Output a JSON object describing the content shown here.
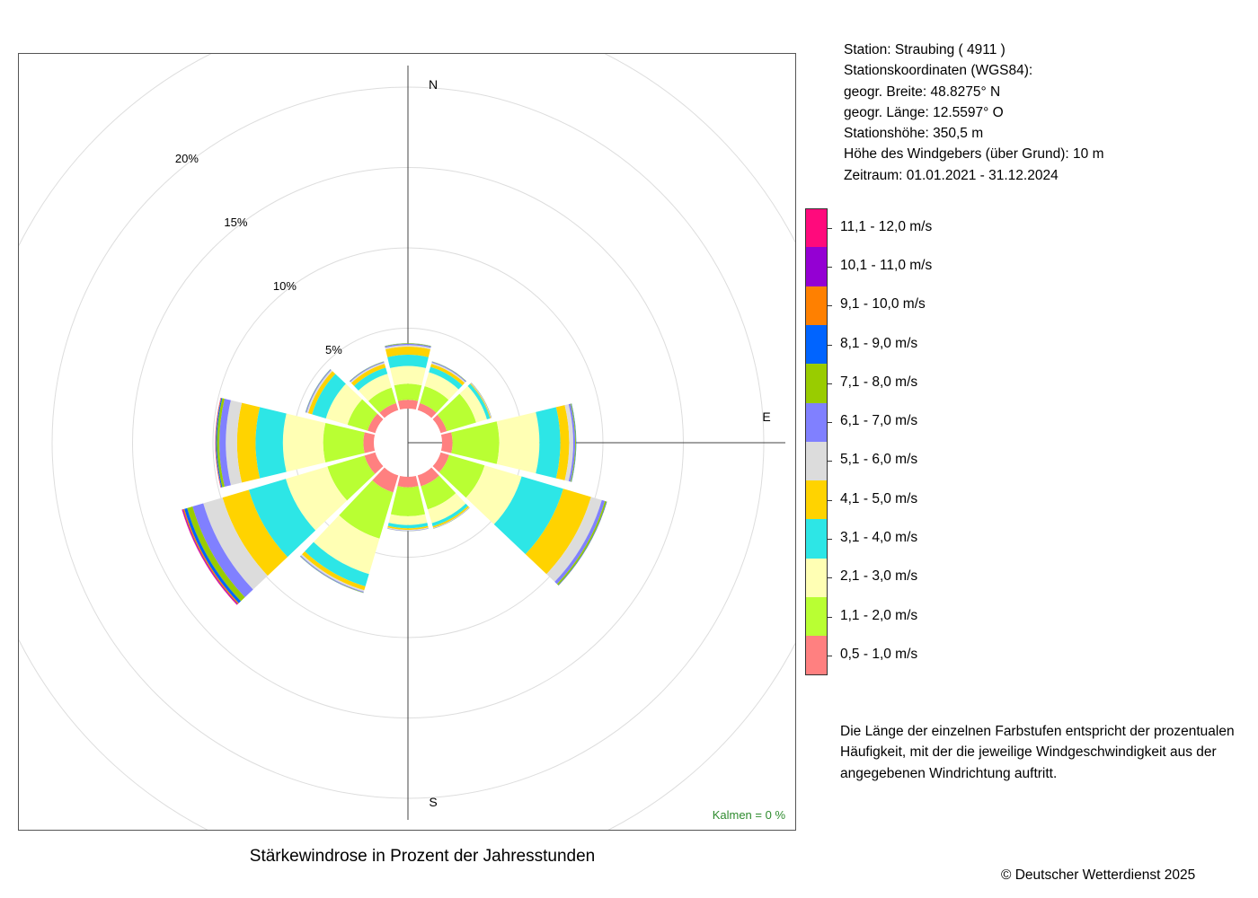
{
  "header": {
    "station": "Station:  Straubing  ( 4911 )",
    "coords_title": "Stationskoordinaten (WGS84):",
    "lat": "geogr. Breite: 48.8275° N",
    "lon": "geogr. Länge: 12.5597° O",
    "elevation": "Stationshöhe: 350,5 m",
    "sensor_height": "Höhe des Windgebers (über Grund): 10 m",
    "period": "Zeitraum: 01.01.2021 - 31.12.2024"
  },
  "footer": {
    "explanation": "Die Länge der einzelnen Farbstufen entspricht der prozentualen Häufigkeit, mit der die jeweilige Windgeschwindigkeit aus der angegebenen Windrichtung auftritt.",
    "copyright": "© Deutscher Wetterdienst  2025"
  },
  "chart_data": {
    "type": "wind-rose",
    "title": "Stärkewindrose in Prozent der Jahresstunden",
    "calm": "Kalmen  =  0 %",
    "direction_labels": {
      "n": "N",
      "e": "E",
      "s": "S"
    },
    "rings": [
      {
        "value": 5,
        "label": "5%"
      },
      {
        "value": 10,
        "label": "10%"
      },
      {
        "value": 15,
        "label": "15%"
      },
      {
        "value": 20,
        "label": "20%"
      },
      {
        "value": 25,
        "label": ""
      }
    ],
    "legend": [
      {
        "label": "11,1 - 12,0 m/s",
        "color": "#ff0a7c"
      },
      {
        "label": "10,1 - 11,0 m/s",
        "color": "#9400d3"
      },
      {
        "label": "9,1 - 10,0 m/s",
        "color": "#ff8000"
      },
      {
        "label": "8,1 - 9,0 m/s",
        "color": "#0064ff"
      },
      {
        "label": "7,1 - 8,0 m/s",
        "color": "#99cc00"
      },
      {
        "label": "6,1 - 7,0 m/s",
        "color": "#8080ff"
      },
      {
        "label": "5,1 - 6,0 m/s",
        "color": "#dcdcdc"
      },
      {
        "label": "4,1 - 5,0 m/s",
        "color": "#ffd300"
      },
      {
        "label": "3,1 - 4,0 m/s",
        "color": "#2de6e6"
      },
      {
        "label": "2,1 - 3,0 m/s",
        "color": "#ffffb4"
      },
      {
        "label": "1,1 - 2,0 m/s",
        "color": "#b9ff33"
      },
      {
        "label": "0,5 - 1,0 m/s",
        "color": "#ff8080"
      }
    ],
    "bins_ms": [
      "0,5 - 1,0",
      "1,1 - 2,0",
      "2,1 - 3,0",
      "3,1 - 4,0",
      "4,1 - 5,0",
      "5,1 - 6,0",
      "6,1 - 7,0",
      "7,1 - 8,0",
      "8,1 - 9,0",
      "9,1 - 10,0",
      "10,1 - 11,0",
      "11,1 - 12,0"
    ],
    "directions_deg": [
      0,
      30,
      60,
      90,
      120,
      150,
      180,
      210,
      240,
      270,
      300,
      330
    ],
    "series": [
      {
        "direction": 0,
        "values": [
          0.55,
          1.0,
          1.1,
          0.7,
          0.5,
          0.1,
          0.08,
          0.03,
          0.01,
          0,
          0,
          0
        ]
      },
      {
        "direction": 30,
        "values": [
          0.45,
          1.1,
          0.9,
          0.35,
          0.2,
          0.08,
          0.05,
          0.02,
          0.01,
          0,
          0,
          0
        ]
      },
      {
        "direction": 60,
        "values": [
          0.4,
          1.9,
          0.7,
          0.2,
          0.05,
          0.03,
          0.02,
          0.01,
          0,
          0,
          0,
          0
        ]
      },
      {
        "direction": 90,
        "values": [
          0.65,
          2.9,
          2.5,
          1.3,
          0.55,
          0.25,
          0.12,
          0.05,
          0.02,
          0,
          0,
          0
        ]
      },
      {
        "direction": 120,
        "values": [
          0.55,
          2.3,
          2.4,
          2.7,
          1.8,
          0.7,
          0.2,
          0.1,
          0.03,
          0.01,
          0,
          0
        ]
      },
      {
        "direction": 150,
        "values": [
          0.7,
          1.5,
          0.9,
          0.2,
          0.1,
          0.03,
          0.02,
          0.01,
          0,
          0,
          0,
          0
        ]
      },
      {
        "direction": 180,
        "values": [
          0.65,
          1.8,
          0.55,
          0.2,
          0.1,
          0.05,
          0.02,
          0.01,
          0,
          0,
          0,
          0
        ]
      },
      {
        "direction": 210,
        "values": [
          1.1,
          3.0,
          2.3,
          0.8,
          0.25,
          0.1,
          0.05,
          0.02,
          0.01,
          0,
          0,
          0
        ]
      },
      {
        "direction": 240,
        "values": [
          0.7,
          2.4,
          2.7,
          2.4,
          1.7,
          1.25,
          0.7,
          0.35,
          0.18,
          0.08,
          0.05,
          0.03
        ]
      },
      {
        "direction": 270,
        "values": [
          0.65,
          2.5,
          2.5,
          1.7,
          1.15,
          0.7,
          0.4,
          0.15,
          0.06,
          0.03,
          0.01,
          0.01
        ]
      },
      {
        "direction": 300,
        "values": [
          0.5,
          1.3,
          1.4,
          0.9,
          0.25,
          0.1,
          0.05,
          0.02,
          0.01,
          0,
          0,
          0
        ]
      },
      {
        "direction": 330,
        "values": [
          0.45,
          1.0,
          0.9,
          0.4,
          0.25,
          0.08,
          0.05,
          0.02,
          0.01,
          0,
          0,
          0
        ]
      }
    ]
  }
}
